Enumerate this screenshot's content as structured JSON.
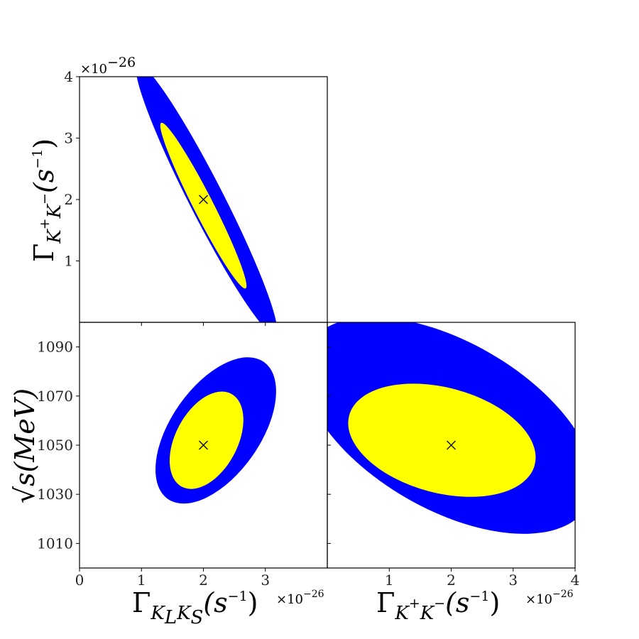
{
  "colors": {
    "inner": "#ffff00",
    "outer": "#0000ff",
    "frame": "#000000"
  },
  "exponent_label": "×10",
  "exponent_power": "−26",
  "labels": {
    "y_top": {
      "main": "Γ",
      "sub": "K",
      "sup1": "+",
      "sub2": "K",
      "sup2": "−",
      "unit": "(s",
      "unit_sup": "−1",
      "close": ")"
    },
    "y_bottom": {
      "root": "√",
      "main": "s(MeV)"
    },
    "x_left": {
      "main": "Γ",
      "sub": "K",
      "sub_small1": "L",
      "sub_b": "K",
      "sub_small2": "S",
      "unit": "(s",
      "unit_sup": "−1",
      "close": ")"
    },
    "x_right": {
      "main": "Γ",
      "sub": "K",
      "sup1": "+",
      "sub2": "K",
      "sup2": "−",
      "unit": "(s",
      "unit_sup": "−1",
      "close": ")"
    }
  },
  "chart_data": [
    {
      "panel": "top-left",
      "type": "scatter",
      "x_quantity": "Γ_KLKS (s^-1) ×10^-26",
      "y_quantity": "Γ_K+K- (s^-1) ×10^-26",
      "xlim": [
        0,
        4
      ],
      "ylim": [
        0,
        4
      ],
      "yticks": [
        1,
        2,
        3,
        4
      ],
      "marker": {
        "x": 2,
        "y": 2,
        "symbol": "x"
      },
      "regions": [
        {
          "level": "outer",
          "center": [
            2.05,
            2.0
          ],
          "semi_major": 2.45,
          "semi_minor": 0.28,
          "angle_deg": -63
        },
        {
          "level": "inner",
          "center": [
            2.0,
            1.9
          ],
          "semi_major": 1.5,
          "semi_minor": 0.16,
          "angle_deg": -63
        }
      ]
    },
    {
      "panel": "bottom-left",
      "type": "scatter",
      "x_quantity": "Γ_KLKS (s^-1) ×10^-26",
      "y_quantity": "√s (MeV)",
      "xlim": [
        0,
        4
      ],
      "ylim": [
        1000,
        1100
      ],
      "xticks": [
        0,
        1,
        2,
        3
      ],
      "yticks": [
        1010,
        1030,
        1050,
        1070,
        1090
      ],
      "marker": {
        "x": 2,
        "y": 1050,
        "symbol": "x"
      },
      "regions": [
        {
          "level": "outer",
          "center": [
            2.2,
            1056
          ],
          "semi_major": 1.35,
          "semi_minor": 0.72,
          "angle_deg": 55
        },
        {
          "level": "inner",
          "center": [
            2.05,
            1052
          ],
          "semi_major": 0.85,
          "semi_minor": 0.5,
          "angle_deg": 62
        }
      ]
    },
    {
      "panel": "bottom-right",
      "type": "scatter",
      "x_quantity": "Γ_K+K- (s^-1) ×10^-26",
      "y_quantity": "√s (MeV)",
      "xlim": [
        0,
        4
      ],
      "ylim": [
        1000,
        1100
      ],
      "xticks": [
        1,
        2,
        3,
        4
      ],
      "marker": {
        "x": 2,
        "y": 1050,
        "symbol": "x"
      },
      "regions": [
        {
          "level": "outer",
          "center": [
            1.95,
            1058
          ],
          "semi_major": 2.6,
          "semi_minor": 1.35,
          "angle_deg": -30
        },
        {
          "level": "inner",
          "center": [
            1.85,
            1052
          ],
          "semi_major": 1.55,
          "semi_minor": 0.85,
          "angle_deg": -15
        }
      ]
    }
  ]
}
